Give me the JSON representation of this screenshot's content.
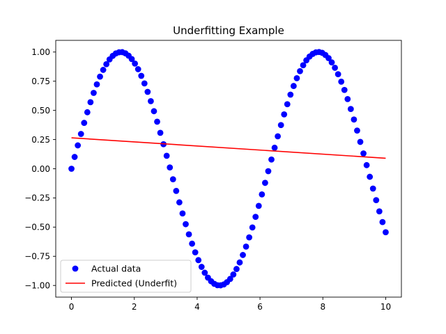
{
  "chart_data": {
    "type": "scatter",
    "title": "Underfitting Example",
    "xlabel": "",
    "ylabel": "",
    "xlim": [
      -0.5,
      10.5
    ],
    "ylim": [
      -1.1,
      1.1
    ],
    "x_ticks": [
      0,
      2,
      4,
      6,
      8,
      10
    ],
    "x_tick_labels": [
      "0",
      "2",
      "4",
      "6",
      "8",
      "10"
    ],
    "y_ticks": [
      -1.0,
      -0.75,
      -0.5,
      -0.25,
      0.0,
      0.25,
      0.5,
      0.75,
      1.0
    ],
    "y_tick_labels": [
      "−1.00",
      "−0.75",
      "−0.50",
      "−0.25",
      "0.00",
      "0.25",
      "0.50",
      "0.75",
      "1.00"
    ],
    "grid": false,
    "legend_position": "lower-left",
    "series": [
      {
        "name": "Actual data",
        "kind": "scatter",
        "color": "#0000ff",
        "x": [
          0.0,
          0.101,
          0.202,
          0.303,
          0.404,
          0.505,
          0.606,
          0.707,
          0.808,
          0.909,
          1.01,
          1.111,
          1.212,
          1.313,
          1.414,
          1.515,
          1.616,
          1.717,
          1.818,
          1.919,
          2.02,
          2.121,
          2.222,
          2.323,
          2.424,
          2.525,
          2.626,
          2.727,
          2.828,
          2.929,
          3.03,
          3.131,
          3.232,
          3.333,
          3.434,
          3.535,
          3.636,
          3.737,
          3.838,
          3.939,
          4.04,
          4.141,
          4.242,
          4.343,
          4.444,
          4.545,
          4.646,
          4.747,
          4.848,
          4.949,
          5.051,
          5.152,
          5.253,
          5.354,
          5.455,
          5.556,
          5.657,
          5.758,
          5.859,
          5.96,
          6.061,
          6.162,
          6.263,
          6.364,
          6.465,
          6.566,
          6.667,
          6.768,
          6.869,
          6.97,
          7.071,
          7.172,
          7.273,
          7.374,
          7.475,
          7.576,
          7.677,
          7.778,
          7.879,
          7.98,
          8.081,
          8.182,
          8.283,
          8.384,
          8.485,
          8.586,
          8.687,
          8.788,
          8.889,
          8.99,
          9.091,
          9.192,
          9.293,
          9.394,
          9.495,
          9.596,
          9.697,
          9.798,
          9.899,
          10.0
        ],
        "y": [
          0.0,
          0.101,
          0.2,
          0.298,
          0.393,
          0.484,
          0.57,
          0.65,
          0.723,
          0.789,
          0.847,
          0.896,
          0.937,
          0.967,
          0.988,
          0.998,
          0.999,
          0.989,
          0.969,
          0.94,
          0.901,
          0.853,
          0.796,
          0.731,
          0.659,
          0.579,
          0.493,
          0.403,
          0.308,
          0.21,
          0.111,
          0.011,
          -0.09,
          -0.19,
          -0.288,
          -0.383,
          -0.475,
          -0.562,
          -0.642,
          -0.716,
          -0.783,
          -0.841,
          -0.891,
          -0.933,
          -0.964,
          -0.986,
          -0.998,
          -0.999,
          -0.991,
          -0.972,
          -0.944,
          -0.906,
          -0.859,
          -0.803,
          -0.739,
          -0.667,
          -0.588,
          -0.503,
          -0.412,
          -0.318,
          -0.22,
          -0.121,
          -0.021,
          0.079,
          0.18,
          0.278,
          0.374,
          0.466,
          0.553,
          0.635,
          0.709,
          0.776,
          0.836,
          0.887,
          0.929,
          0.961,
          0.984,
          0.997,
          1.0,
          0.993,
          0.975,
          0.948,
          0.911,
          0.865,
          0.81,
          0.746,
          0.675,
          0.597,
          0.512,
          0.422,
          0.327,
          0.23,
          0.131,
          0.031,
          -0.069,
          -0.17,
          -0.269,
          -0.365,
          -0.457,
          -0.544
        ]
      },
      {
        "name": "Predicted (Underfit)",
        "kind": "line",
        "color": "#ff0000",
        "x": [
          0,
          10
        ],
        "y": [
          0.265,
          0.09
        ]
      }
    ]
  }
}
